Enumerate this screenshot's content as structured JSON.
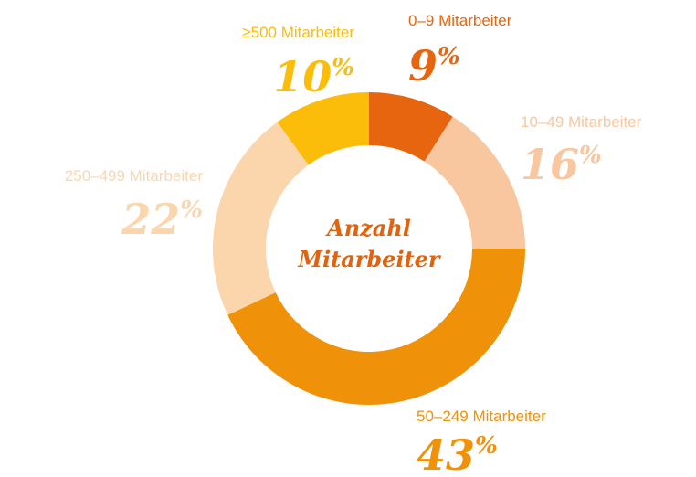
{
  "chart_data": {
    "type": "donut",
    "center_text": [
      "Anzahl",
      "Mitarbeiter"
    ],
    "categories": [
      "0–9 Mitarbeiter",
      "10–49 Mitarbeiter",
      "50–249 Mitarbeiter",
      "250–499 Mitarbeiter",
      "≥500 Mitarbeiter"
    ],
    "values": [
      9,
      16,
      43,
      22,
      10
    ],
    "value_labels": [
      "9%",
      "16%",
      "43%",
      "22%",
      "10%"
    ],
    "colors": [
      "#e8650f",
      "#f8c7a0",
      "#f0910a",
      "#fbd6ad",
      "#fbbd0a"
    ]
  }
}
